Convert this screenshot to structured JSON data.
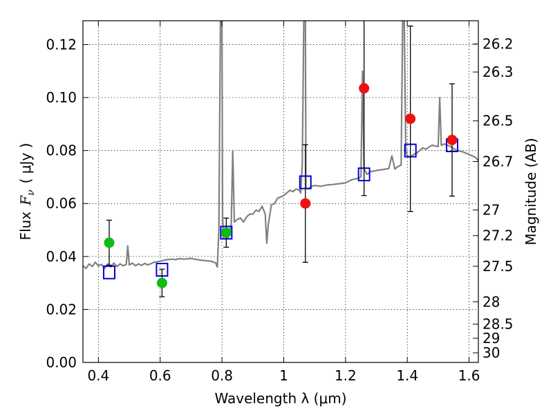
{
  "chart_data": {
    "type": "scatter",
    "xlabel": "Wavelength  λ (μm)",
    "ylabel_prefix": "Flux",
    "ylabel_symbol": "F",
    "ylabel_subscript": "ν",
    "ylabel_unit": "( μJy )",
    "y2label": "Magnitude (AB)",
    "xlim": [
      0.35,
      1.63
    ],
    "ylim": [
      0.0,
      0.129
    ],
    "grid": true,
    "x_ticks": [
      0.4,
      0.6,
      0.8,
      1.0,
      1.2,
      1.4,
      1.6
    ],
    "x_tick_labels": [
      "0.4",
      "0.6",
      "0.8",
      "1",
      "1.2",
      "1.4",
      "1.6"
    ],
    "y_ticks": [
      0.0,
      0.02,
      0.04,
      0.06,
      0.08,
      0.1,
      0.12
    ],
    "y_tick_labels": [
      "0.00",
      "0.02",
      "0.04",
      "0.06",
      "0.08",
      "0.10",
      "0.12"
    ],
    "mag_ticks": [
      26.2,
      26.3,
      26.5,
      26.7,
      27,
      27.2,
      27.5,
      28,
      28.5,
      29,
      30
    ],
    "mag_tick_labels": [
      "26.2",
      "26.3",
      "26.5",
      "26.7",
      "27",
      "27.2",
      "27.5",
      "28",
      "28.5",
      "29",
      "30"
    ],
    "series": [
      {
        "name": "green points",
        "color": "#11bb11",
        "marker": "circle",
        "points": [
          {
            "x": 0.435,
            "y": 0.0452,
            "err": 0.0085
          },
          {
            "x": 0.606,
            "y": 0.03,
            "err": 0.0052
          },
          {
            "x": 0.814,
            "y": 0.049,
            "err": 0.0055
          }
        ]
      },
      {
        "name": "red points",
        "color": "#ee1111",
        "marker": "circle",
        "points": [
          {
            "x": 1.07,
            "y": 0.06,
            "err": 0.0222
          },
          {
            "x": 1.26,
            "y": 0.1035,
            "err": 0.0405
          },
          {
            "x": 1.41,
            "y": 0.092,
            "err": 0.035
          },
          {
            "x": 1.545,
            "y": 0.084,
            "err": 0.0212
          }
        ]
      },
      {
        "name": "model photometry",
        "color": "#0000dd",
        "marker": "square",
        "points": [
          {
            "x": 0.435,
            "y": 0.034
          },
          {
            "x": 0.606,
            "y": 0.035
          },
          {
            "x": 0.814,
            "y": 0.049
          },
          {
            "x": 1.07,
            "y": 0.068
          },
          {
            "x": 1.26,
            "y": 0.071
          },
          {
            "x": 1.41,
            "y": 0.08
          },
          {
            "x": 1.545,
            "y": 0.082
          }
        ]
      },
      {
        "name": "model spectrum",
        "color": "#808080",
        "marker": "line",
        "points": [
          [
            0.35,
            0.0365
          ],
          [
            0.36,
            0.0355
          ],
          [
            0.37,
            0.0372
          ],
          [
            0.38,
            0.0362
          ],
          [
            0.39,
            0.0378
          ],
          [
            0.4,
            0.0365
          ],
          [
            0.41,
            0.037
          ],
          [
            0.42,
            0.0355
          ],
          [
            0.43,
            0.0372
          ],
          [
            0.44,
            0.036
          ],
          [
            0.45,
            0.0375
          ],
          [
            0.46,
            0.0362
          ],
          [
            0.47,
            0.0372
          ],
          [
            0.48,
            0.0365
          ],
          [
            0.49,
            0.037
          ],
          [
            0.495,
            0.044
          ],
          [
            0.5,
            0.0368
          ],
          [
            0.51,
            0.0375
          ],
          [
            0.52,
            0.0365
          ],
          [
            0.53,
            0.0372
          ],
          [
            0.54,
            0.0366
          ],
          [
            0.55,
            0.0374
          ],
          [
            0.56,
            0.0368
          ],
          [
            0.58,
            0.0378
          ],
          [
            0.6,
            0.0382
          ],
          [
            0.62,
            0.0388
          ],
          [
            0.64,
            0.039
          ],
          [
            0.65,
            0.0388
          ],
          [
            0.66,
            0.0392
          ],
          [
            0.68,
            0.039
          ],
          [
            0.7,
            0.0393
          ],
          [
            0.72,
            0.0388
          ],
          [
            0.74,
            0.0385
          ],
          [
            0.76,
            0.0383
          ],
          [
            0.77,
            0.038
          ],
          [
            0.78,
            0.0375
          ],
          [
            0.785,
            0.036
          ],
          [
            0.79,
            0.05
          ],
          [
            0.795,
            0.129
          ],
          [
            0.8,
            0.129
          ],
          [
            0.802,
            0.055
          ],
          [
            0.805,
            0.047
          ],
          [
            0.81,
            0.048
          ],
          [
            0.82,
            0.047
          ],
          [
            0.83,
            0.052
          ],
          [
            0.835,
            0.08
          ],
          [
            0.84,
            0.053
          ],
          [
            0.85,
            0.054
          ],
          [
            0.86,
            0.0545
          ],
          [
            0.87,
            0.053
          ],
          [
            0.88,
            0.055
          ],
          [
            0.89,
            0.056
          ],
          [
            0.9,
            0.056
          ],
          [
            0.91,
            0.0575
          ],
          [
            0.92,
            0.057
          ],
          [
            0.93,
            0.059
          ],
          [
            0.94,
            0.056
          ],
          [
            0.945,
            0.045
          ],
          [
            0.95,
            0.052
          ],
          [
            0.96,
            0.0595
          ],
          [
            0.97,
            0.06
          ],
          [
            0.98,
            0.062
          ],
          [
            0.99,
            0.0625
          ],
          [
            1.0,
            0.063
          ],
          [
            1.01,
            0.064
          ],
          [
            1.02,
            0.065
          ],
          [
            1.03,
            0.0645
          ],
          [
            1.04,
            0.0655
          ],
          [
            1.05,
            0.065
          ],
          [
            1.055,
            0.064
          ],
          [
            1.06,
            0.075
          ],
          [
            1.065,
            0.129
          ],
          [
            1.07,
            0.129
          ],
          [
            1.072,
            0.066
          ],
          [
            1.08,
            0.0655
          ],
          [
            1.09,
            0.0665
          ],
          [
            1.1,
            0.0668
          ],
          [
            1.12,
            0.0665
          ],
          [
            1.14,
            0.067
          ],
          [
            1.16,
            0.0672
          ],
          [
            1.18,
            0.0675
          ],
          [
            1.2,
            0.0678
          ],
          [
            1.22,
            0.069
          ],
          [
            1.24,
            0.0695
          ],
          [
            1.25,
            0.07
          ],
          [
            1.255,
            0.11
          ],
          [
            1.26,
            0.073
          ],
          [
            1.27,
            0.071
          ],
          [
            1.28,
            0.072
          ],
          [
            1.3,
            0.0725
          ],
          [
            1.32,
            0.0728
          ],
          [
            1.34,
            0.0732
          ],
          [
            1.35,
            0.078
          ],
          [
            1.36,
            0.073
          ],
          [
            1.37,
            0.074
          ],
          [
            1.38,
            0.0745
          ],
          [
            1.385,
            0.129
          ],
          [
            1.39,
            0.129
          ],
          [
            1.395,
            0.08
          ],
          [
            1.4,
            0.078
          ],
          [
            1.41,
            0.0775
          ],
          [
            1.42,
            0.0785
          ],
          [
            1.43,
            0.079
          ],
          [
            1.44,
            0.08
          ],
          [
            1.45,
            0.081
          ],
          [
            1.46,
            0.0805
          ],
          [
            1.48,
            0.082
          ],
          [
            1.5,
            0.0815
          ],
          [
            1.505,
            0.1
          ],
          [
            1.51,
            0.082
          ],
          [
            1.52,
            0.0825
          ],
          [
            1.54,
            0.0815
          ],
          [
            1.56,
            0.08
          ],
          [
            1.58,
            0.0795
          ],
          [
            1.6,
            0.0785
          ],
          [
            1.62,
            0.0775
          ],
          [
            1.63,
            0.0762
          ]
        ]
      }
    ]
  }
}
